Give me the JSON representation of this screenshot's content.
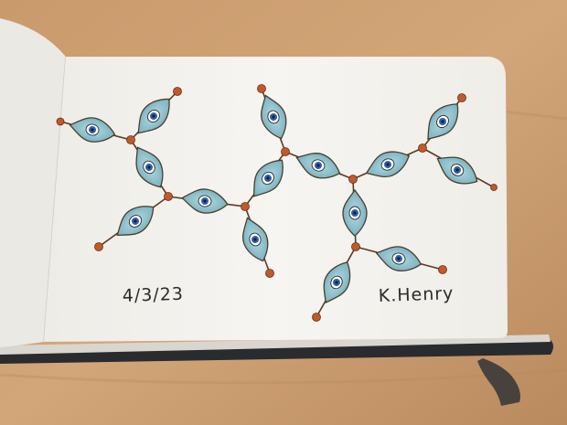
{
  "image": {
    "subject": "sketchbook-drawing",
    "colors": {
      "table": "#c89a6e",
      "table_dark": "#b5855a",
      "page": "#f4f2ee",
      "page_shadow": "#e3e0da",
      "left_page": "#ebe9e4",
      "book_cover": "#2a2b2e",
      "leaf_fill": "#86bcc8",
      "leaf_fill_light": "#a9d3dc",
      "leaf_stroke": "#4a3d2c",
      "eye_blue": "#2f5fa8",
      "eye_dark": "#0f2040",
      "node": "#c05a2a",
      "ribbon": "#3a3a3a"
    }
  },
  "annotations": {
    "date": "4/3/23",
    "signature": "K.Henry"
  }
}
